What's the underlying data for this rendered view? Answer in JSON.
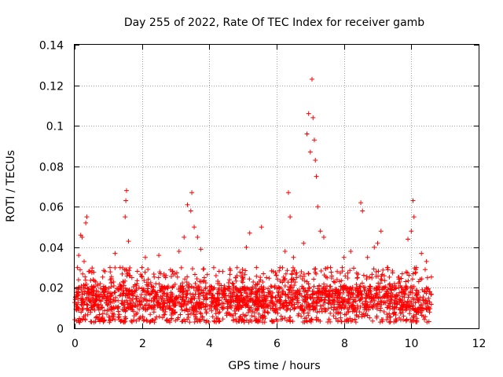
{
  "chart_data": {
    "type": "scatter",
    "title": "Day 255 of 2022, Rate Of TEC Index for receiver gamb",
    "xlabel": "GPS time / hours",
    "ylabel": "ROTI / TECUs",
    "xlim": [
      0,
      12
    ],
    "ylim": [
      0,
      0.14
    ],
    "xticks": [
      0,
      2,
      4,
      6,
      8,
      10,
      12
    ],
    "yticks": [
      0,
      0.02,
      0.04,
      0.06,
      0.08,
      0.1,
      0.12,
      0.14
    ],
    "xtick_labels": [
      "0",
      "2",
      "4",
      "6",
      "8",
      "10",
      "12"
    ],
    "ytick_labels": [
      "0",
      "0.02",
      "0.04",
      "0.06",
      "0.08",
      "0.1",
      "0.12",
      "0.14"
    ],
    "grid": true,
    "marker": "+",
    "color": "#ff0000",
    "series": [
      {
        "name": "ROTI",
        "points": [
          [
            0.05,
            0.012
          ],
          [
            0.08,
            0.03
          ],
          [
            0.12,
            0.036
          ],
          [
            0.18,
            0.046
          ],
          [
            0.22,
            0.045
          ],
          [
            0.28,
            0.033
          ],
          [
            0.33,
            0.052
          ],
          [
            0.36,
            0.055
          ],
          [
            0.42,
            0.028
          ],
          [
            0.55,
            0.024
          ],
          [
            0.7,
            0.018
          ],
          [
            0.9,
            0.028
          ],
          [
            1.05,
            0.03
          ],
          [
            1.2,
            0.037
          ],
          [
            1.35,
            0.03
          ],
          [
            1.5,
            0.055
          ],
          [
            1.52,
            0.063
          ],
          [
            1.54,
            0.068
          ],
          [
            1.6,
            0.043
          ],
          [
            1.7,
            0.025
          ],
          [
            1.85,
            0.022
          ],
          [
            2.0,
            0.03
          ],
          [
            2.1,
            0.035
          ],
          [
            2.3,
            0.018
          ],
          [
            2.5,
            0.036
          ],
          [
            2.7,
            0.025
          ],
          [
            2.9,
            0.028
          ],
          [
            3.1,
            0.038
          ],
          [
            3.25,
            0.045
          ],
          [
            3.35,
            0.061
          ],
          [
            3.45,
            0.058
          ],
          [
            3.48,
            0.067
          ],
          [
            3.55,
            0.05
          ],
          [
            3.65,
            0.045
          ],
          [
            3.75,
            0.039
          ],
          [
            3.85,
            0.025
          ],
          [
            4.0,
            0.018
          ],
          [
            4.2,
            0.026
          ],
          [
            4.4,
            0.028
          ],
          [
            4.6,
            0.024
          ],
          [
            4.8,
            0.02
          ],
          [
            5.0,
            0.025
          ],
          [
            5.1,
            0.04
          ],
          [
            5.2,
            0.047
          ],
          [
            5.4,
            0.03
          ],
          [
            5.55,
            0.05
          ],
          [
            5.7,
            0.025
          ],
          [
            5.9,
            0.028
          ],
          [
            6.1,
            0.03
          ],
          [
            6.25,
            0.038
          ],
          [
            6.35,
            0.067
          ],
          [
            6.4,
            0.055
          ],
          [
            6.5,
            0.035
          ],
          [
            6.6,
            0.025
          ],
          [
            6.8,
            0.042
          ],
          [
            6.9,
            0.096
          ],
          [
            6.95,
            0.106
          ],
          [
            7.0,
            0.087
          ],
          [
            7.05,
            0.123
          ],
          [
            7.08,
            0.104
          ],
          [
            7.12,
            0.093
          ],
          [
            7.15,
            0.083
          ],
          [
            7.18,
            0.075
          ],
          [
            7.22,
            0.06
          ],
          [
            7.3,
            0.048
          ],
          [
            7.4,
            0.045
          ],
          [
            7.6,
            0.03
          ],
          [
            7.8,
            0.028
          ],
          [
            8.0,
            0.035
          ],
          [
            8.2,
            0.038
          ],
          [
            8.4,
            0.025
          ],
          [
            8.5,
            0.062
          ],
          [
            8.55,
            0.058
          ],
          [
            8.7,
            0.035
          ],
          [
            8.9,
            0.04
          ],
          [
            9.0,
            0.042
          ],
          [
            9.1,
            0.048
          ],
          [
            9.3,
            0.03
          ],
          [
            9.5,
            0.022
          ],
          [
            9.7,
            0.02
          ],
          [
            9.9,
            0.044
          ],
          [
            10.0,
            0.048
          ],
          [
            10.05,
            0.063
          ],
          [
            10.08,
            0.055
          ],
          [
            10.15,
            0.03
          ],
          [
            10.3,
            0.037
          ],
          [
            10.45,
            0.033
          ],
          [
            10.55,
            0.018
          ]
        ]
      }
    ],
    "background_cloud": {
      "x_range": [
        0,
        10.6
      ],
      "y_range": [
        0.003,
        0.03
      ],
      "typical_level": 0.015,
      "count": 2200
    }
  }
}
